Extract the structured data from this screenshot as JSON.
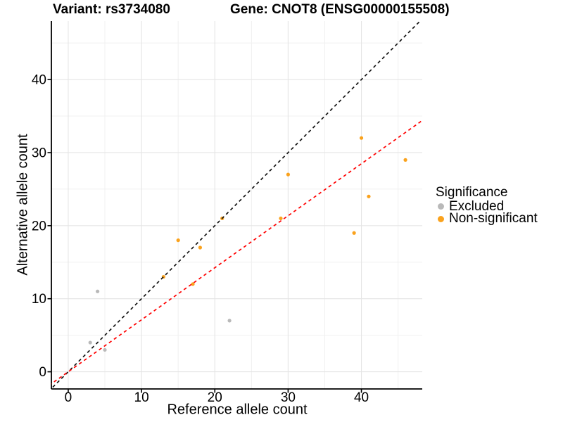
{
  "title": {
    "variant": "Variant: rs3734080",
    "gene": "Gene: CNOT8 (ENSG00000155508)"
  },
  "axes": {
    "x_label": "Reference allele count",
    "y_label": "Alternative allele count"
  },
  "legend": {
    "title": "Significance",
    "items": [
      {
        "label": "Excluded",
        "color": "#B9B9B9"
      },
      {
        "label": "Non-significant",
        "color": "#FAA21D"
      }
    ]
  },
  "colors": {
    "excluded_point": "#B9B9B9",
    "nonsignificant_point": "#FAA21D",
    "identity_line": "#141414",
    "fitted_line": "#FF0000",
    "grid_major": "#E5E5E5",
    "grid_minor": "#F0F0F0",
    "axis": "#000000"
  },
  "chart_data": {
    "type": "scatter",
    "title": "Variant: rs3734080   Gene: CNOT8 (ENSG00000155508)",
    "xlabel": "Reference allele count",
    "ylabel": "Alternative allele count",
    "xlim": [
      -2.3,
      48.3
    ],
    "ylim": [
      -2.35,
      48.0
    ],
    "x_ticks": [
      0,
      10,
      20,
      30,
      40
    ],
    "y_ticks": [
      0,
      10,
      20,
      30,
      40
    ],
    "x_minor_ticks": [
      5,
      15,
      25,
      35,
      45
    ],
    "y_minor_ticks": [
      5,
      15,
      25,
      35,
      45
    ],
    "grid": true,
    "legend_position": "right",
    "series": [
      {
        "name": "Excluded",
        "color": "#B9B9B9",
        "points": [
          [
            3,
            4
          ],
          [
            4,
            11
          ],
          [
            5,
            3
          ],
          [
            22,
            7
          ]
        ]
      },
      {
        "name": "Non-significant",
        "color": "#FAA21D",
        "points": [
          [
            13,
            13
          ],
          [
            15,
            18
          ],
          [
            17,
            12
          ],
          [
            18,
            17
          ],
          [
            21,
            21
          ],
          [
            29,
            21
          ],
          [
            30,
            27
          ],
          [
            39,
            19
          ],
          [
            40,
            32
          ],
          [
            41,
            24
          ],
          [
            46,
            29
          ]
        ]
      }
    ],
    "lines": [
      {
        "name": "identity-line",
        "slope": 1,
        "intercept": 0,
        "color": "#141414",
        "style": "dashed"
      },
      {
        "name": "fitted-ratio-line",
        "slope": 0.712,
        "intercept": 0,
        "color": "#FF0000",
        "style": "dashed"
      }
    ]
  }
}
